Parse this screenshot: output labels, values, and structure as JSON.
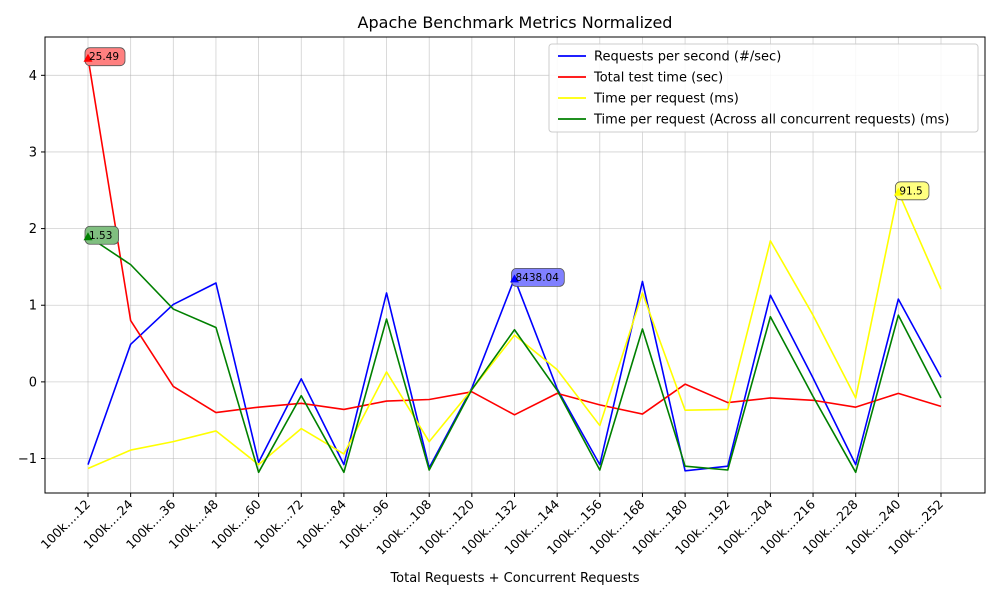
{
  "chart_data": {
    "type": "line",
    "title": "Apache Benchmark Metrics Normalized",
    "xlabel": "Total Requests + Concurrent Requests",
    "ylabel": "",
    "ylim": [
      -1.45,
      4.5
    ],
    "yticks": [
      -1,
      0,
      1,
      2,
      3,
      4
    ],
    "ytick_labels": [
      "−1",
      "0",
      "1",
      "2",
      "3",
      "4"
    ],
    "grid": true,
    "legend_position": "top-right",
    "categories": [
      "100k….12",
      "100k….24",
      "100k….36",
      "100k….48",
      "100k….60",
      "100k….72",
      "100k….84",
      "100k….96",
      "100k….108",
      "100k….120",
      "100k….132",
      "100k….144",
      "100k….156",
      "100k….168",
      "100k….180",
      "100k….192",
      "100k….204",
      "100k….216",
      "100k….228",
      "100k….240",
      "100k….252"
    ],
    "series": [
      {
        "name": "Requests per second (#/sec)",
        "color": "#0000ff",
        "values": [
          -1.08,
          0.49,
          1.01,
          1.29,
          -1.05,
          0.04,
          -1.08,
          1.16,
          -1.12,
          -0.08,
          1.35,
          -0.09,
          -1.08,
          1.31,
          -1.16,
          -1.1,
          1.13,
          0.05,
          -1.08,
          1.08,
          0.06
        ],
        "annotation": {
          "index": 10,
          "text": "8438.04",
          "bg": "#8080ff"
        }
      },
      {
        "name": "Total test time (sec)",
        "color": "#ff0000",
        "values": [
          4.23,
          0.8,
          -0.06,
          -0.4,
          -0.33,
          -0.28,
          -0.36,
          -0.25,
          -0.23,
          -0.13,
          -0.43,
          -0.15,
          -0.3,
          -0.42,
          -0.03,
          -0.27,
          -0.21,
          -0.24,
          -0.33,
          -0.15,
          -0.32
        ],
        "annotation": {
          "index": 0,
          "text": "25.49",
          "bg": "#ff8080"
        }
      },
      {
        "name": "Time per request (ms)",
        "color": "#ffff00",
        "values": [
          -1.13,
          -0.89,
          -0.78,
          -0.64,
          -1.08,
          -0.61,
          -0.94,
          0.13,
          -0.78,
          -0.1,
          0.61,
          0.16,
          -0.57,
          1.16,
          -0.37,
          -0.36,
          1.84,
          0.87,
          -0.21,
          2.48,
          1.21
        ],
        "annotation": {
          "index": 19,
          "text": "91.5",
          "bg": "#ffff80"
        }
      },
      {
        "name": "Time per request (Across all concurrent requests) (ms)",
        "color": "#008000",
        "values": [
          1.9,
          1.53,
          0.95,
          0.71,
          -1.18,
          -0.18,
          -1.18,
          0.82,
          -1.15,
          -0.1,
          0.68,
          -0.11,
          -1.15,
          0.69,
          -1.1,
          -1.15,
          0.85,
          -0.19,
          -1.18,
          0.87,
          -0.21
        ],
        "annotation": {
          "index": 0,
          "text": "1.53",
          "bg": "#80bf80"
        }
      }
    ]
  }
}
